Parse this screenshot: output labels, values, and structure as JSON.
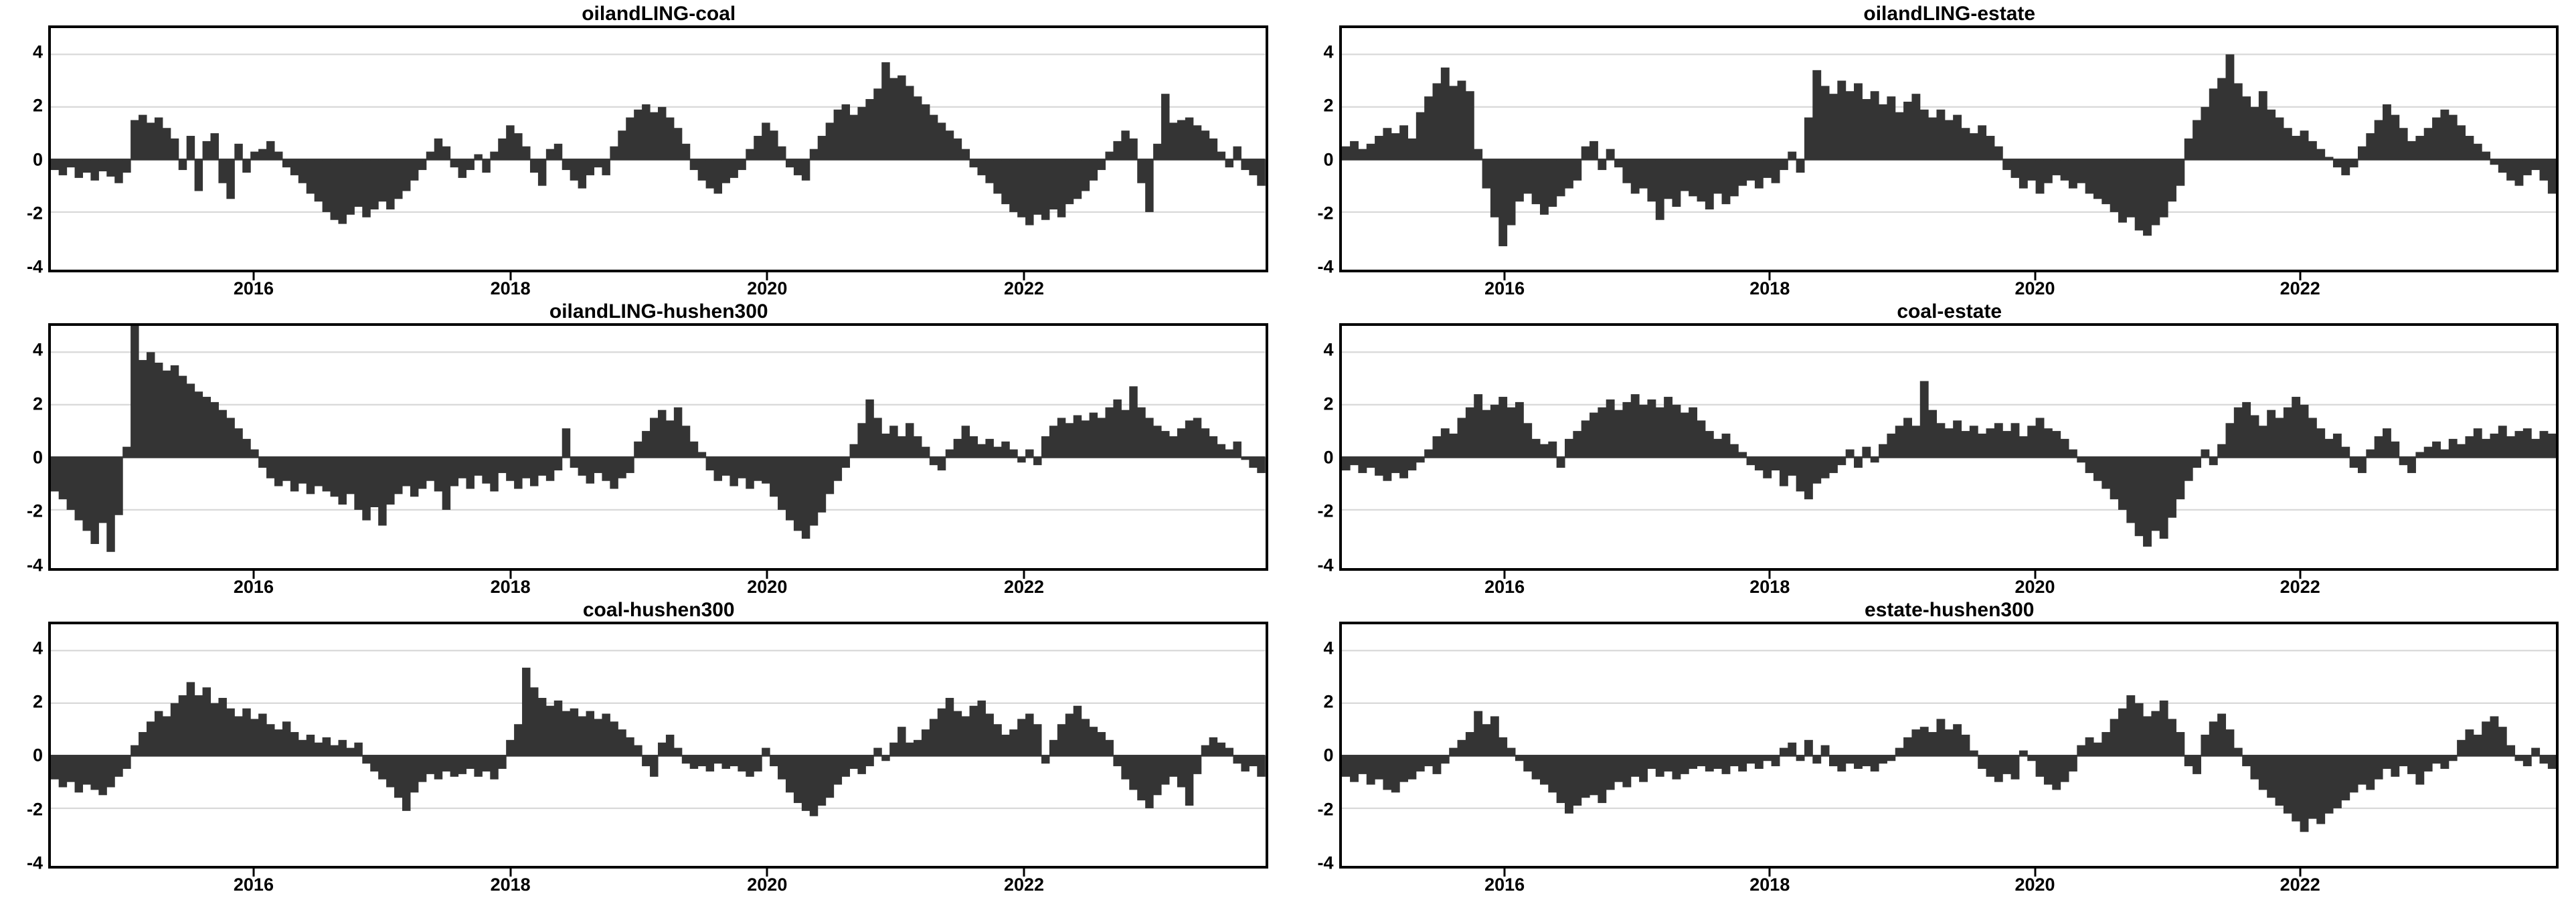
{
  "figure": {
    "background": "#ffffff",
    "bar_color": "#343434",
    "grid_color": "#d9d9d9",
    "axis_color": "#000000",
    "tick_label_color": "#000000"
  },
  "chart_data": [
    {
      "type": "bar",
      "title": "oilandLING-coal",
      "xlabel": "",
      "ylabel": "",
      "x_start": 2014.4,
      "x_end": 2023.9,
      "x_ticks": [
        2016,
        2018,
        2020,
        2022
      ],
      "y_ticks": [
        4,
        2,
        0,
        -2,
        -4
      ],
      "grid_values": [
        4,
        2,
        -2
      ],
      "ylim": [
        -4.2,
        5.0
      ],
      "grid": true,
      "legend": "none",
      "values": [
        -0.4,
        -0.6,
        -0.3,
        -0.7,
        -0.5,
        -0.8,
        -0.45,
        -0.65,
        -0.9,
        -0.5,
        1.5,
        1.7,
        1.4,
        1.6,
        1.2,
        0.8,
        -0.4,
        0.9,
        -1.2,
        0.7,
        1.0,
        -0.9,
        -1.5,
        0.6,
        -0.5,
        0.3,
        0.4,
        0.7,
        0.3,
        -0.3,
        -0.6,
        -0.9,
        -1.3,
        -1.6,
        -2.0,
        -2.3,
        -2.45,
        -2.1,
        -1.8,
        -2.2,
        -1.9,
        -1.6,
        -1.9,
        -1.5,
        -1.2,
        -0.8,
        -0.4,
        0.3,
        0.8,
        0.5,
        -0.3,
        -0.7,
        -0.4,
        0.2,
        -0.5,
        0.3,
        0.8,
        1.3,
        1.0,
        0.5,
        -0.5,
        -1.0,
        0.4,
        0.6,
        -0.4,
        -0.8,
        -1.1,
        -0.6,
        -0.3,
        -0.6,
        0.5,
        1.1,
        1.6,
        1.9,
        2.1,
        1.8,
        2.0,
        1.6,
        1.2,
        0.6,
        -0.4,
        -0.8,
        -1.1,
        -1.3,
        -0.9,
        -0.7,
        -0.4,
        0.4,
        0.9,
        1.4,
        1.1,
        0.5,
        -0.3,
        -0.6,
        -0.8,
        0.4,
        0.9,
        1.4,
        1.9,
        2.1,
        1.7,
        2.0,
        2.3,
        2.7,
        3.7,
        3.1,
        3.2,
        2.8,
        2.4,
        2.1,
        1.7,
        1.4,
        1.1,
        0.8,
        0.4,
        -0.3,
        -0.6,
        -0.9,
        -1.3,
        -1.7,
        -2.0,
        -2.2,
        -2.5,
        -2.1,
        -2.3,
        -1.9,
        -2.2,
        -1.7,
        -1.5,
        -1.2,
        -0.8,
        -0.4,
        0.3,
        0.7,
        1.1,
        0.8,
        -0.9,
        -2.0,
        0.6,
        2.5,
        1.4,
        1.5,
        1.6,
        1.3,
        1.1,
        0.8,
        0.3,
        -0.3,
        0.5,
        -0.4,
        -0.6,
        -1.0
      ]
    },
    {
      "type": "bar",
      "title": "oilandLING-estate",
      "xlabel": "",
      "ylabel": "",
      "x_start": 2014.75,
      "x_end": 2023.95,
      "x_ticks": [
        2016,
        2018,
        2020,
        2022
      ],
      "y_ticks": [
        4,
        2,
        0,
        -2,
        -4
      ],
      "grid_values": [
        4,
        2,
        -2
      ],
      "ylim": [
        -4.2,
        5.0
      ],
      "grid": true,
      "legend": "none",
      "values": [
        0.5,
        0.7,
        0.4,
        0.6,
        0.9,
        1.2,
        1.0,
        1.3,
        0.8,
        1.8,
        2.4,
        2.9,
        3.5,
        2.8,
        3.0,
        2.6,
        0.4,
        -1.1,
        -2.2,
        -3.3,
        -2.5,
        -1.6,
        -1.3,
        -1.7,
        -2.1,
        -1.8,
        -1.4,
        -1.1,
        -0.8,
        0.5,
        0.7,
        -0.4,
        0.4,
        -0.3,
        -0.9,
        -1.3,
        -1.1,
        -1.6,
        -2.3,
        -1.5,
        -1.8,
        -1.2,
        -1.4,
        -1.6,
        -1.9,
        -1.3,
        -1.7,
        -1.4,
        -1.0,
        -0.8,
        -1.1,
        -0.7,
        -0.9,
        -0.4,
        0.3,
        -0.5,
        1.6,
        3.4,
        2.8,
        2.5,
        3.0,
        2.6,
        2.9,
        2.3,
        2.6,
        2.1,
        2.4,
        1.8,
        2.2,
        2.5,
        1.9,
        1.6,
        1.9,
        1.5,
        1.7,
        1.2,
        1.0,
        1.3,
        0.9,
        0.5,
        -0.4,
        -0.7,
        -1.1,
        -0.8,
        -1.3,
        -0.9,
        -0.6,
        -0.8,
        -1.1,
        -0.9,
        -1.3,
        -1.5,
        -1.7,
        -2.0,
        -2.4,
        -2.2,
        -2.7,
        -2.9,
        -2.5,
        -2.2,
        -1.6,
        -1.0,
        0.8,
        1.5,
        2.0,
        2.7,
        3.1,
        4.0,
        2.9,
        2.4,
        2.0,
        2.6,
        1.9,
        1.6,
        1.2,
        0.9,
        1.1,
        0.7,
        0.4,
        0.1,
        -0.3,
        -0.6,
        -0.3,
        0.5,
        1.0,
        1.5,
        2.1,
        1.7,
        1.2,
        0.7,
        0.9,
        1.2,
        1.6,
        1.9,
        1.7,
        1.3,
        0.9,
        0.6,
        0.3,
        -0.2,
        -0.5,
        -0.8,
        -1.0,
        -0.6,
        -0.4,
        -0.8,
        -1.3
      ]
    },
    {
      "type": "bar",
      "title": "oilandLING-hushen300",
      "xlabel": "",
      "ylabel": "",
      "x_start": 2014.4,
      "x_end": 2023.9,
      "x_ticks": [
        2016,
        2018,
        2020,
        2022
      ],
      "y_ticks": [
        4,
        2,
        0,
        -2,
        -4
      ],
      "grid_values": [
        4,
        2,
        -2
      ],
      "ylim": [
        -4.2,
        5.0
      ],
      "grid": true,
      "legend": "none",
      "values": [
        -1.3,
        -1.6,
        -2.0,
        -2.4,
        -2.8,
        -3.3,
        -2.5,
        -3.6,
        -2.2,
        0.4,
        5.0,
        3.7,
        4.0,
        3.6,
        3.3,
        3.5,
        3.1,
        2.8,
        2.5,
        2.3,
        2.1,
        1.8,
        1.5,
        1.1,
        0.7,
        0.3,
        -0.4,
        -0.8,
        -1.1,
        -0.9,
        -1.3,
        -1.0,
        -1.4,
        -1.1,
        -1.3,
        -1.5,
        -1.8,
        -1.4,
        -2.0,
        -2.4,
        -1.9,
        -2.6,
        -1.8,
        -1.4,
        -1.1,
        -1.5,
        -1.2,
        -0.9,
        -1.3,
        -2.0,
        -1.1,
        -0.8,
        -1.2,
        -0.7,
        -1.0,
        -1.3,
        -0.6,
        -0.9,
        -1.2,
        -0.8,
        -1.1,
        -0.7,
        -0.9,
        -0.5,
        1.1,
        -0.4,
        -0.7,
        -1.0,
        -0.6,
        -0.9,
        -1.2,
        -0.8,
        -0.6,
        0.6,
        1.0,
        1.5,
        1.8,
        1.4,
        1.9,
        1.2,
        0.6,
        0.2,
        -0.5,
        -0.9,
        -0.7,
        -1.1,
        -0.8,
        -1.2,
        -0.9,
        -1.0,
        -1.5,
        -2.0,
        -2.4,
        -2.8,
        -3.1,
        -2.6,
        -2.1,
        -1.4,
        -0.9,
        -0.4,
        0.5,
        1.3,
        2.2,
        1.5,
        0.9,
        1.2,
        0.8,
        1.3,
        0.8,
        0.4,
        -0.3,
        -0.5,
        0.3,
        0.7,
        1.2,
        0.8,
        0.5,
        0.7,
        0.4,
        0.6,
        0.3,
        -0.2,
        0.3,
        -0.3,
        0.8,
        1.2,
        1.5,
        1.3,
        1.6,
        1.4,
        1.7,
        1.5,
        1.9,
        2.2,
        1.8,
        2.7,
        1.9,
        1.5,
        1.2,
        1.0,
        0.8,
        1.1,
        1.4,
        1.5,
        1.1,
        0.8,
        0.5,
        0.3,
        0.6,
        -0.1,
        -0.4,
        -0.6
      ]
    },
    {
      "type": "bar",
      "title": "coal-estate",
      "xlabel": "",
      "ylabel": "",
      "x_start": 2014.75,
      "x_end": 2023.95,
      "x_ticks": [
        2016,
        2018,
        2020,
        2022
      ],
      "y_ticks": [
        4,
        2,
        0,
        -2,
        -4
      ],
      "grid_values": [
        4,
        2,
        -2
      ],
      "ylim": [
        -4.2,
        5.0
      ],
      "grid": true,
      "legend": "none",
      "values": [
        -0.5,
        -0.3,
        -0.6,
        -0.4,
        -0.7,
        -0.9,
        -0.6,
        -0.8,
        -0.5,
        -0.2,
        0.3,
        0.8,
        1.1,
        0.9,
        1.5,
        1.9,
        2.4,
        1.8,
        2.0,
        2.3,
        1.9,
        2.1,
        1.3,
        0.7,
        0.5,
        0.6,
        -0.4,
        0.7,
        1.0,
        1.4,
        1.7,
        1.9,
        2.2,
        1.8,
        2.1,
        2.4,
        2.0,
        2.2,
        1.9,
        2.3,
        2.0,
        1.7,
        1.9,
        1.4,
        1.0,
        0.7,
        0.9,
        0.5,
        0.2,
        -0.3,
        -0.5,
        -0.8,
        -0.5,
        -1.1,
        -0.7,
        -1.3,
        -1.6,
        -1.0,
        -0.8,
        -0.6,
        -0.3,
        0.3,
        -0.4,
        0.4,
        -0.2,
        0.5,
        0.9,
        1.2,
        1.5,
        1.2,
        2.9,
        1.8,
        1.3,
        1.1,
        1.4,
        1.0,
        1.2,
        0.9,
        1.1,
        1.3,
        1.0,
        1.3,
        0.8,
        1.2,
        1.5,
        1.1,
        1.0,
        0.7,
        0.3,
        -0.2,
        -0.6,
        -0.9,
        -1.2,
        -1.6,
        -2.0,
        -2.5,
        -3.0,
        -3.4,
        -2.8,
        -3.1,
        -2.3,
        -1.6,
        -0.9,
        -0.4,
        0.3,
        -0.3,
        0.5,
        1.3,
        1.9,
        2.1,
        1.6,
        1.2,
        1.8,
        1.5,
        1.9,
        2.3,
        2.0,
        1.5,
        1.1,
        0.7,
        0.9,
        0.4,
        -0.4,
        -0.6,
        0.3,
        0.8,
        1.1,
        0.6,
        -0.3,
        -0.6,
        0.2,
        0.4,
        0.6,
        0.3,
        0.7,
        0.5,
        0.8,
        1.1,
        0.7,
        0.9,
        1.2,
        0.8,
        1.0,
        1.1,
        0.7,
        1.0,
        0.9
      ]
    },
    {
      "type": "bar",
      "title": "coal-hushen300",
      "xlabel": "",
      "ylabel": "",
      "x_start": 2014.4,
      "x_end": 2023.9,
      "x_ticks": [
        2016,
        2018,
        2020,
        2022
      ],
      "y_ticks": [
        4,
        2,
        0,
        -2,
        -4
      ],
      "grid_values": [
        4,
        2,
        -2
      ],
      "ylim": [
        -4.2,
        5.0
      ],
      "grid": true,
      "legend": "none",
      "values": [
        -0.9,
        -1.2,
        -1.0,
        -1.4,
        -1.1,
        -1.3,
        -1.5,
        -1.2,
        -0.8,
        -0.5,
        0.4,
        0.9,
        1.3,
        1.7,
        1.5,
        2.0,
        2.3,
        2.8,
        2.3,
        2.6,
        2.0,
        2.2,
        1.8,
        1.5,
        1.8,
        1.4,
        1.6,
        1.2,
        1.0,
        1.3,
        0.9,
        0.6,
        0.8,
        0.5,
        0.7,
        0.4,
        0.6,
        0.3,
        0.5,
        -0.3,
        -0.6,
        -0.9,
        -1.2,
        -1.6,
        -2.1,
        -1.4,
        -1.0,
        -0.7,
        -0.9,
        -0.6,
        -0.8,
        -0.7,
        -0.5,
        -0.8,
        -0.6,
        -0.9,
        -0.5,
        0.6,
        1.2,
        3.35,
        2.6,
        2.2,
        1.9,
        2.1,
        1.7,
        1.8,
        1.5,
        1.7,
        1.4,
        1.6,
        1.3,
        1.0,
        0.7,
        0.4,
        -0.4,
        -0.8,
        0.5,
        0.8,
        0.3,
        -0.3,
        -0.5,
        -0.4,
        -0.6,
        -0.3,
        -0.5,
        -0.4,
        -0.6,
        -0.8,
        -0.6,
        0.3,
        -0.4,
        -0.9,
        -1.4,
        -1.8,
        -2.1,
        -2.3,
        -1.9,
        -1.6,
        -1.1,
        -0.8,
        -0.5,
        -0.7,
        -0.4,
        0.3,
        -0.2,
        0.5,
        1.1,
        0.5,
        0.6,
        1.0,
        1.4,
        1.8,
        2.2,
        1.7,
        1.5,
        1.9,
        2.1,
        1.6,
        1.2,
        0.8,
        1.0,
        1.4,
        1.6,
        1.2,
        -0.3,
        0.6,
        1.2,
        1.6,
        1.9,
        1.4,
        1.1,
        0.9,
        0.6,
        -0.4,
        -0.9,
        -1.3,
        -1.7,
        -2.0,
        -1.5,
        -1.1,
        -0.8,
        -1.2,
        -1.9,
        -0.7,
        0.4,
        0.7,
        0.5,
        0.3,
        -0.3,
        -0.6,
        -0.4,
        -0.8
      ]
    },
    {
      "type": "bar",
      "title": "estate-hushen300",
      "xlabel": "",
      "ylabel": "",
      "x_start": 2014.75,
      "x_end": 2023.95,
      "x_ticks": [
        2016,
        2018,
        2020,
        2022
      ],
      "y_ticks": [
        4,
        2,
        0,
        -2,
        -4
      ],
      "grid_values": [
        4,
        2,
        -2
      ],
      "ylim": [
        -4.2,
        5.0
      ],
      "grid": true,
      "legend": "none",
      "values": [
        -0.8,
        -1.0,
        -0.7,
        -1.1,
        -0.9,
        -1.3,
        -1.4,
        -1.0,
        -0.9,
        -0.6,
        -0.4,
        -0.7,
        -0.3,
        0.3,
        0.6,
        0.9,
        1.7,
        1.2,
        1.5,
        0.7,
        0.3,
        -0.2,
        -0.6,
        -0.9,
        -1.1,
        -1.4,
        -1.8,
        -2.2,
        -1.9,
        -1.6,
        -1.5,
        -1.8,
        -1.3,
        -1.0,
        -1.2,
        -0.8,
        -1.0,
        -0.5,
        -0.8,
        -0.6,
        -0.9,
        -0.7,
        -0.5,
        -0.4,
        -0.6,
        -0.5,
        -0.7,
        -0.4,
        -0.6,
        -0.3,
        -0.5,
        -0.2,
        -0.4,
        0.3,
        0.5,
        -0.2,
        0.6,
        -0.3,
        0.4,
        -0.4,
        -0.6,
        -0.3,
        -0.5,
        -0.4,
        -0.6,
        -0.3,
        -0.2,
        0.3,
        0.7,
        1.0,
        1.1,
        0.9,
        1.4,
        1.0,
        1.2,
        0.8,
        0.2,
        -0.5,
        -0.8,
        -1.0,
        -0.7,
        -0.9,
        0.2,
        -0.2,
        -0.8,
        -1.1,
        -1.3,
        -1.0,
        -0.6,
        0.4,
        0.7,
        0.5,
        0.9,
        1.4,
        1.8,
        2.3,
        2.0,
        1.5,
        1.7,
        2.1,
        1.4,
        0.9,
        -0.4,
        -0.7,
        0.8,
        1.3,
        1.6,
        1.0,
        0.3,
        -0.4,
        -0.9,
        -1.3,
        -1.6,
        -1.9,
        -2.2,
        -2.5,
        -2.9,
        -2.4,
        -2.6,
        -2.2,
        -2.0,
        -1.7,
        -1.4,
        -1.1,
        -1.3,
        -0.9,
        -0.5,
        -0.8,
        -0.4,
        -0.7,
        -1.1,
        -0.6,
        -0.3,
        -0.5,
        -0.2,
        0.6,
        1.0,
        0.8,
        1.3,
        1.5,
        1.1,
        0.4,
        -0.2,
        -0.4,
        0.3,
        -0.3,
        -0.5
      ]
    }
  ]
}
